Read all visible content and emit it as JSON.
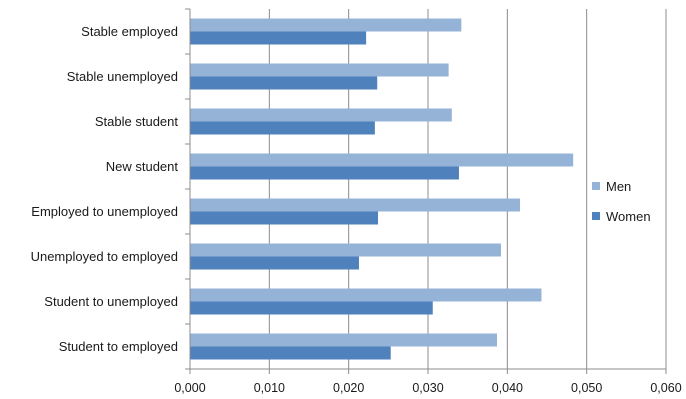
{
  "chart_data": {
    "type": "bar",
    "orientation": "horizontal",
    "categories": [
      "Stable employed",
      "Stable unemployed",
      "Stable student",
      "New student",
      "Employed to unemployed",
      "Unemployed to employed",
      "Student to unemployed",
      "Student to employed"
    ],
    "series": [
      {
        "name": "Men",
        "color": "#95b3d7",
        "values": [
          0.0342,
          0.0326,
          0.033,
          0.0483,
          0.0416,
          0.0392,
          0.0443,
          0.0387
        ]
      },
      {
        "name": "Women",
        "color": "#4f81bd",
        "values": [
          0.0222,
          0.0236,
          0.0233,
          0.0339,
          0.0237,
          0.0213,
          0.0306,
          0.0253
        ]
      }
    ],
    "xlim": [
      0,
      0.06
    ],
    "x_ticks": [
      "0,000",
      "0,010",
      "0,020",
      "0,030",
      "0,040",
      "0,050",
      "0,060"
    ],
    "grid": "vertical",
    "legend_position": "right",
    "title": "",
    "xlabel": "",
    "ylabel": ""
  }
}
